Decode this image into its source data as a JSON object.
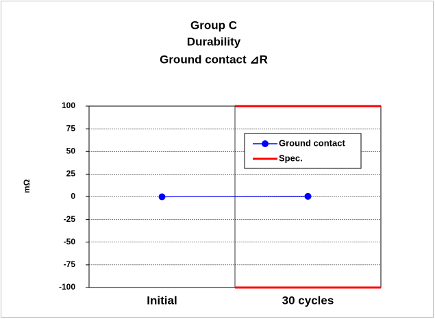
{
  "chart_data": {
    "type": "line",
    "title": [
      "Group C",
      "Durability",
      "Ground contact ⊿R"
    ],
    "ylabel": "mΩ",
    "categories": [
      "Initial",
      "30 cycles"
    ],
    "series": [
      {
        "name": "Ground contact",
        "color": "#0000ff",
        "values": [
          0,
          0.5
        ]
      }
    ],
    "spec": {
      "name": "Spec.",
      "color": "#ff0000",
      "upper": 100,
      "lower": -100
    },
    "ylim": [
      -100,
      100
    ],
    "yticks": [
      -100,
      -75,
      -50,
      -25,
      0,
      25,
      50,
      75,
      100
    ],
    "grid": true,
    "legend": "upper right"
  }
}
